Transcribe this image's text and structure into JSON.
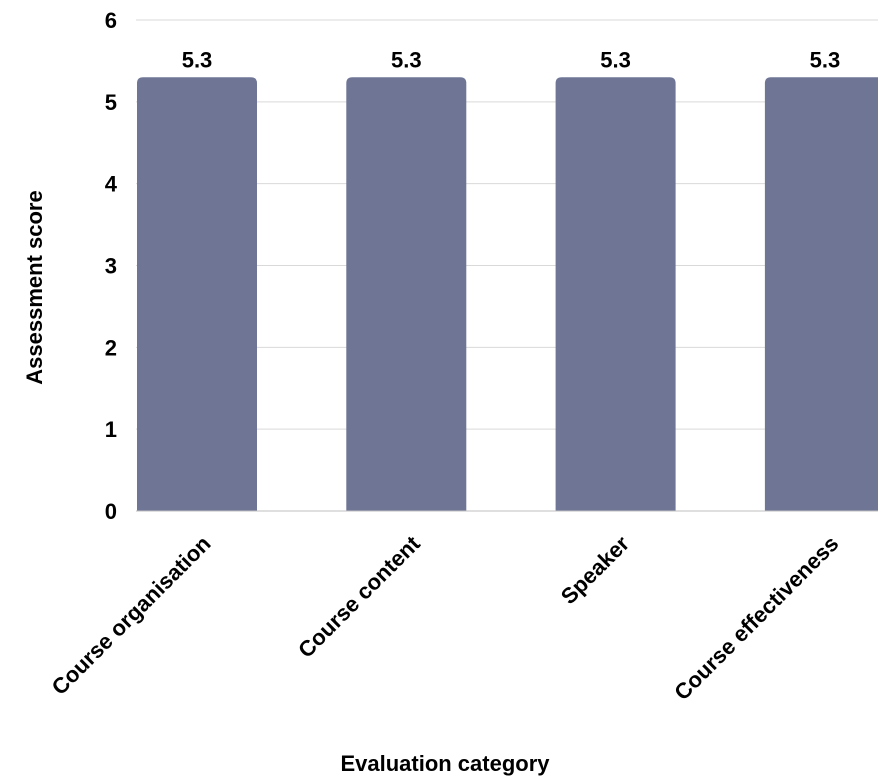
{
  "chart_data": {
    "type": "bar",
    "categories": [
      "Course organisation",
      "Course content",
      "Speaker",
      "Course effectiveness"
    ],
    "values": [
      5.3,
      5.3,
      5.3,
      5.3
    ],
    "data_labels": [
      "5.3",
      "5.3",
      "5.3",
      "5.3"
    ],
    "title": "",
    "xlabel": "Evaluation category",
    "ylabel": "Assessment score",
    "ylim": [
      0,
      6
    ],
    "yticks": [
      0,
      1,
      2,
      3,
      4,
      5,
      6
    ],
    "grid": true,
    "legend": "none",
    "bar_color": "#6f7695",
    "grid_color": "#d9d9d9"
  }
}
